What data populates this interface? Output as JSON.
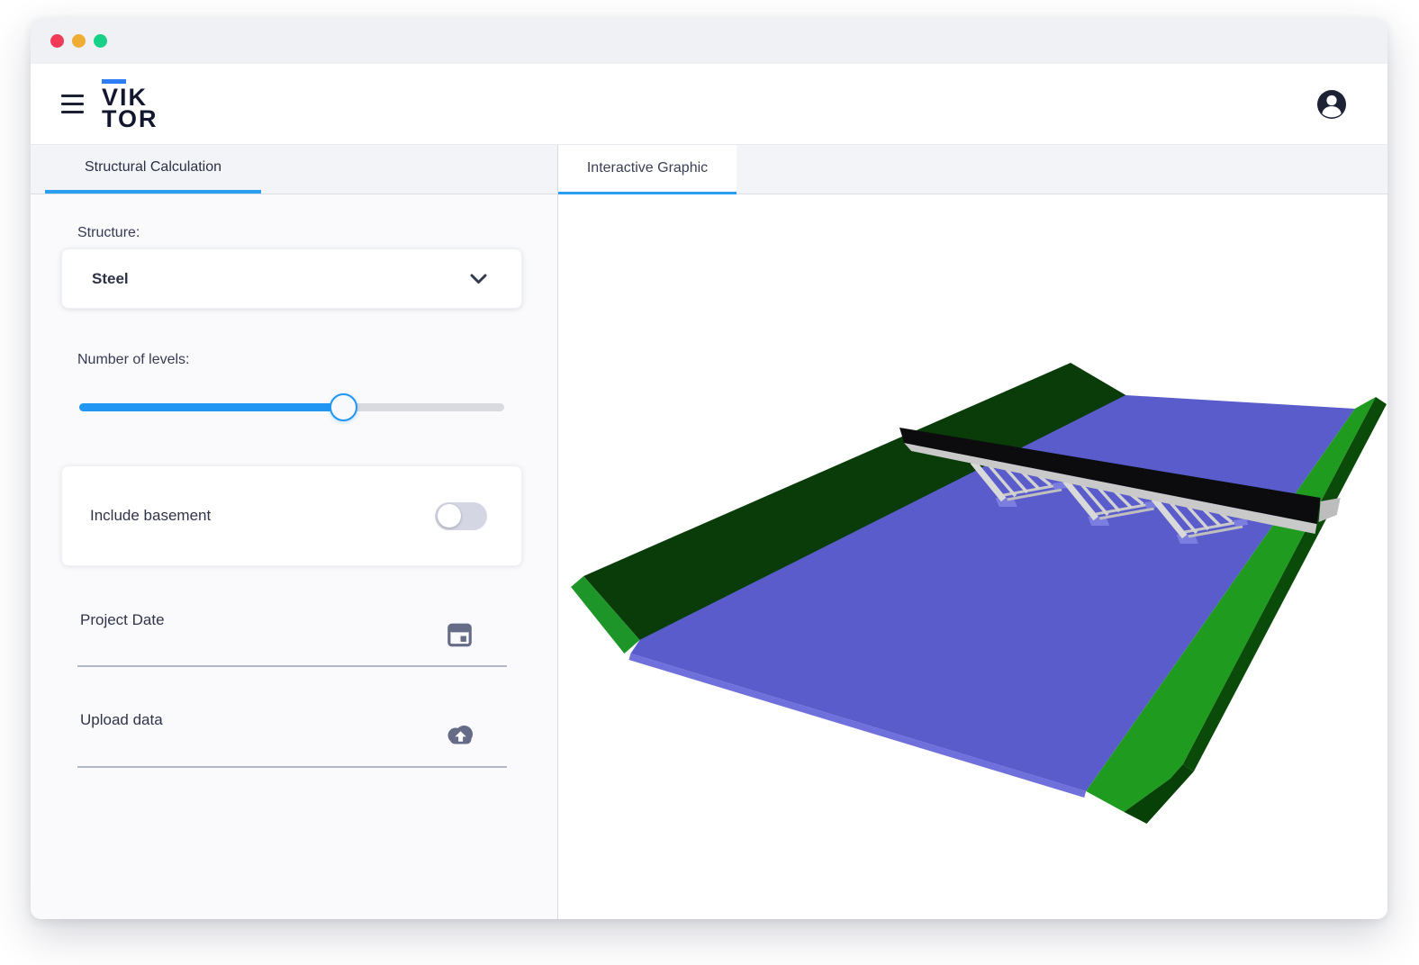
{
  "window": {
    "traffic_lights": [
      {
        "name": "close",
        "color": "#ef3b57"
      },
      {
        "name": "minimize",
        "color": "#f0ad33"
      },
      {
        "name": "zoom",
        "color": "#17d188"
      }
    ]
  },
  "header": {
    "logo": {
      "line1": "VIK",
      "line2": "TOR",
      "accent_color": "#2e7cf6"
    },
    "icons": [
      "menu-icon",
      "account-icon"
    ]
  },
  "tabs": {
    "structural": {
      "label": "Structural Calculation",
      "active": true,
      "accent_color": "#2b9df5"
    },
    "interactive": {
      "label": "Interactive Graphic",
      "active": true,
      "accent_color": "#2b9df5"
    }
  },
  "form": {
    "structure": {
      "label": "Structure:",
      "value": "Steel",
      "icon": "chevron-down-icon"
    },
    "levels": {
      "label": "Number of levels:",
      "value_percent": 62,
      "fill_color": "#2196f3"
    },
    "basement": {
      "label": "Include basement",
      "enabled": false
    },
    "project_date": {
      "label": "Project Date",
      "icon": "calendar-icon"
    },
    "upload": {
      "label": "Upload data",
      "icon": "cloud-upload-icon"
    }
  },
  "scene": {
    "description": "3D view of a steel bridge deck on raking piers crossing a blue river between green embankments",
    "colors": {
      "water": "#5a5ccb",
      "water_edge": "#6f70dc",
      "waterline": "#1c1cb0",
      "left_bank": "#0a3c0a",
      "left_bank_cap": "#1e9528",
      "right_bank": "#1f9c1f",
      "right_bank_side": "#0a4b0a",
      "right_bank_wedge": "#084108",
      "deck": "#0c0c0e",
      "deck_edge": "#c9c9c9",
      "piers": "#d6d6d6",
      "footings": "#7b7ede"
    }
  }
}
